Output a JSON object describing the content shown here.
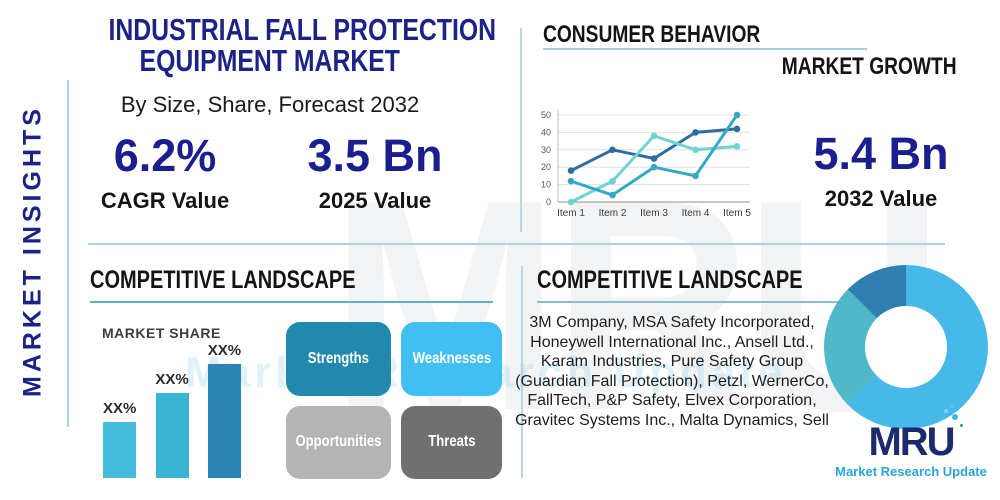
{
  "sidebar": {
    "vertical_label": "MARKET INSIGHTS"
  },
  "titles": {
    "line1": "INDUSTRIAL FALL PROTECTION",
    "line2": "EQUIPMENT MARKET",
    "subtitle": "By Size, Share, Forecast 2032"
  },
  "stats": {
    "cagr_value": "6.2%",
    "cagr_label": "CAGR Value",
    "v2025_value": "3.5 Bn",
    "v2025_label": "2025 Value",
    "v2032_value": "5.4 Bn",
    "v2032_label": "2032 Value"
  },
  "sections": {
    "consumer_behavior": "CONSUMER BEHAVIOR",
    "market_growth": "MARKET GROWTH",
    "landscape_left": "COMPETITIVE LANDSCAPE",
    "landscape_right": "COMPETITIVE LANDSCAPE",
    "market_share": "MARKET SHARE"
  },
  "swot": {
    "items": [
      {
        "label": "Strengths",
        "color": "#2289ae"
      },
      {
        "label": "Weaknesses",
        "color": "#41bff2"
      },
      {
        "label": "Opportunities",
        "color": "#b4b4b4"
      },
      {
        "label": "Threats",
        "color": "#707070"
      }
    ]
  },
  "companies_text": "3M Company, MSA Safety Incorporated, Honeywell International Inc., Ansell Ltd., Karam Industries, Pure Safety Group (Guardian Fall Protection), Petzl, WernerCo, FallTech, P&P Safety, Elvex Corporation, Gravitec Systems Inc., Malta Dynamics, Sell",
  "logo": {
    "text": "MRU",
    "tagline": "Market Research Update"
  },
  "watermark": {
    "big": "MRU",
    "sub": "Market Research Update"
  },
  "chart_data": [
    {
      "id": "consumer-behavior-line",
      "type": "line",
      "x_labels": [
        "Item 1",
        "Item 2",
        "Item 3",
        "Item 4",
        "Item 5"
      ],
      "yticks": [
        0,
        10,
        20,
        30,
        40,
        50
      ],
      "ylim": [
        0,
        50
      ],
      "grid": true,
      "legend": "none",
      "series": [
        {
          "name": "series-dark-blue",
          "color": "#2e6e9e",
          "values": [
            18,
            30,
            25,
            40,
            42
          ]
        },
        {
          "name": "series-light-aqua",
          "color": "#6fd4cf",
          "values": [
            0,
            12,
            38,
            30,
            32
          ]
        },
        {
          "name": "series-teal",
          "color": "#35a9c4",
          "values": [
            12,
            4,
            20,
            15,
            50
          ]
        }
      ]
    },
    {
      "id": "market-share-bar",
      "type": "bar",
      "title": "MARKET SHARE",
      "categories": [
        "XX%",
        "XX%",
        "XX%"
      ],
      "values": [
        33,
        50,
        67
      ],
      "colors": [
        "#45bcd9",
        "#3ab4d3",
        "#2a85b3"
      ]
    },
    {
      "id": "company-share-donut",
      "type": "pie",
      "segments": [
        {
          "value": 62.5,
          "color": "#47b8ea"
        },
        {
          "value": 25,
          "color": "#4fb8c9"
        },
        {
          "value": 12.5,
          "color": "#2f7fb0"
        }
      ]
    }
  ],
  "colors": {
    "navy": "#1c2387",
    "underline_teal": "#5fafc4",
    "underline_light": "#a5cfdd",
    "divider": "#aed2e2",
    "accent_line": "#a6d3e6",
    "logo_blue": "#29a3dc"
  }
}
